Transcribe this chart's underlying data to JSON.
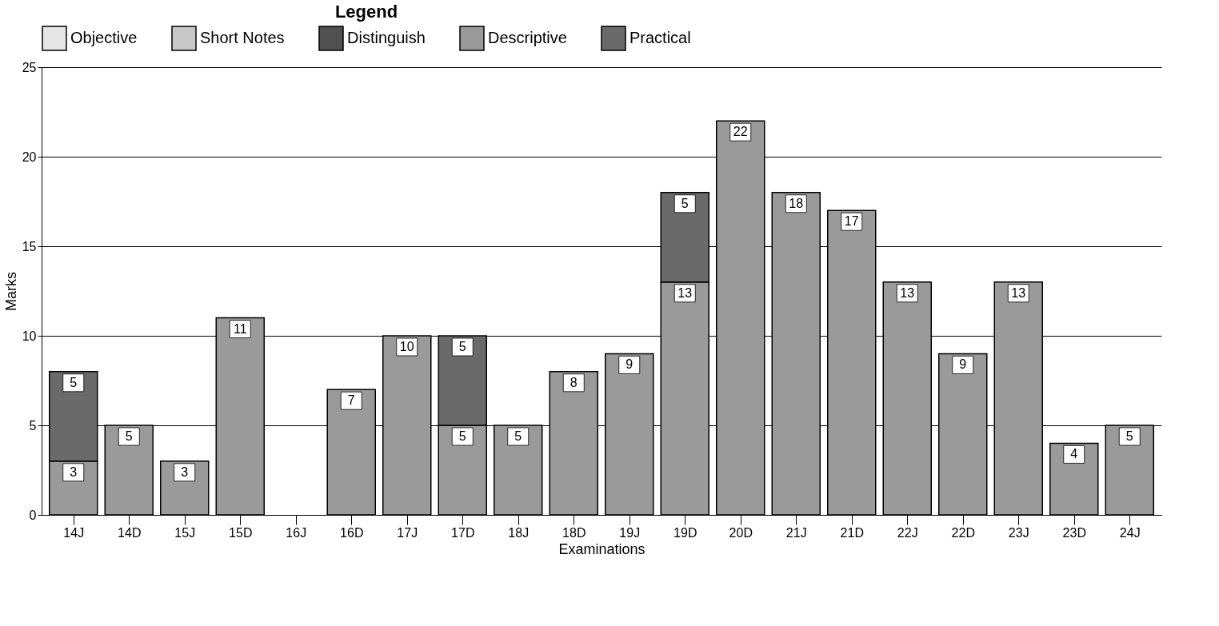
{
  "chart_data": {
    "type": "bar",
    "stacked": true,
    "xlabel": "Examinations",
    "ylabel": "Marks",
    "legend_title": "Legend",
    "categories": [
      "14J",
      "14D",
      "15J",
      "15D",
      "16J",
      "16D",
      "17J",
      "17D",
      "18J",
      "18D",
      "19J",
      "19D",
      "20D",
      "21J",
      "21D",
      "22J",
      "22D",
      "23J",
      "23D",
      "24J"
    ],
    "series": [
      {
        "name": "Objective",
        "color": "#e6e6e6",
        "values": [
          null,
          null,
          null,
          null,
          null,
          null,
          null,
          null,
          null,
          null,
          null,
          null,
          null,
          null,
          null,
          null,
          null,
          null,
          null,
          null
        ]
      },
      {
        "name": "Short Notes",
        "color": "#c8c8c8",
        "values": [
          null,
          null,
          null,
          null,
          null,
          null,
          null,
          null,
          null,
          null,
          null,
          null,
          null,
          null,
          null,
          null,
          null,
          null,
          null,
          null
        ]
      },
      {
        "name": "Distinguish",
        "color": "#505050",
        "values": [
          null,
          null,
          null,
          null,
          null,
          null,
          null,
          null,
          null,
          null,
          null,
          null,
          null,
          null,
          null,
          null,
          null,
          null,
          null,
          null
        ]
      },
      {
        "name": "Descriptive",
        "color": "#9a9a9a",
        "values": [
          3,
          5,
          3,
          11,
          null,
          7,
          10,
          5,
          5,
          8,
          9,
          13,
          22,
          18,
          17,
          13,
          9,
          13,
          4,
          5
        ]
      },
      {
        "name": "Practical",
        "color": "#6a6a6a",
        "values": [
          5,
          null,
          null,
          null,
          null,
          null,
          null,
          5,
          null,
          null,
          null,
          5,
          null,
          null,
          null,
          null,
          null,
          null,
          null,
          null
        ]
      }
    ],
    "ylim": [
      0,
      25
    ],
    "yticks": [
      0,
      5,
      10,
      15,
      20,
      25
    ],
    "grid": "y",
    "legend": "top",
    "data_labels": true
  }
}
